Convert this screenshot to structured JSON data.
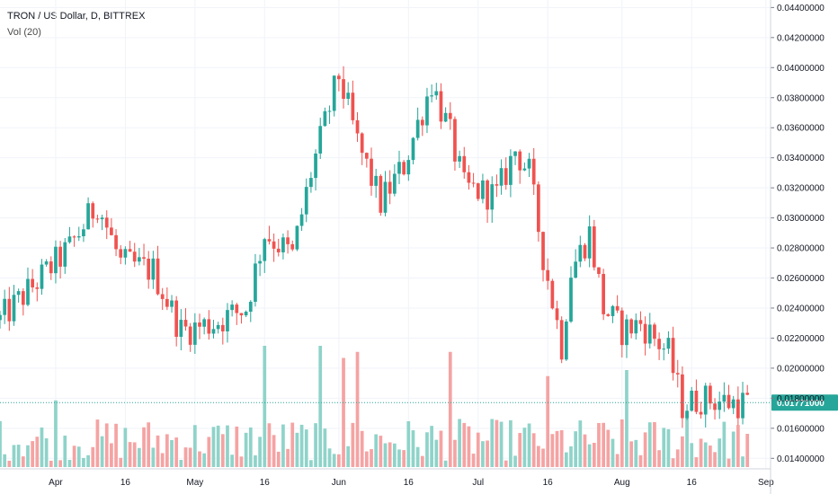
{
  "header": {
    "title": "TRON / US Dollar, D, BITTREX",
    "indicator": "Vol (20)"
  },
  "price_axis": {
    "ticks": [
      "0.04400000",
      "0.04200000",
      "0.04000000",
      "0.03800000",
      "0.03600000",
      "0.03400000",
      "0.03200000",
      "0.03000000",
      "0.02800000",
      "0.02600000",
      "0.02400000",
      "0.02200000",
      "0.02000000",
      "0.01800000",
      "0.01600000",
      "0.01400000"
    ],
    "last_price_label": "0.01771000"
  },
  "time_axis": {
    "ticks": [
      "Apr",
      "16",
      "May",
      "16",
      "Jun",
      "16",
      "Jul",
      "16",
      "Aug",
      "16",
      "Sep"
    ]
  },
  "colors": {
    "up": "#26a69a",
    "down": "#ef5350",
    "up_volume": "#8fd3c9",
    "down_volume": "#f5a3a3",
    "grid": "#f0f3fa",
    "axis_text": "#131722",
    "last_price_badge": "#26a69a"
  },
  "chart_data": {
    "type": "candlestick",
    "title": "TRON / US Dollar, D, BITTREX",
    "ylim": [
      0.0133,
      0.0445
    ],
    "x_range": [
      "2018-03-20",
      "2018-09-02"
    ],
    "grid": true,
    "last_price": 0.01771,
    "series_segments": [
      {
        "start": "2018-03-20",
        "close": 0.0232
      },
      {
        "start": "2018-04-04",
        "close": 0.028
      },
      {
        "start": "2018-04-10",
        "close": 0.031
      },
      {
        "start": "2018-04-15",
        "close": 0.027
      },
      {
        "start": "2018-04-22",
        "close": 0.0265
      },
      {
        "start": "2018-04-28",
        "close": 0.0225
      },
      {
        "start": "2018-05-05",
        "close": 0.023
      },
      {
        "start": "2018-05-12",
        "close": 0.024
      },
      {
        "start": "2018-05-16",
        "close": 0.029
      },
      {
        "start": "2018-05-22",
        "close": 0.0275
      },
      {
        "start": "2018-05-26",
        "close": 0.033
      },
      {
        "start": "2018-06-01",
        "close": 0.0395
      },
      {
        "start": "2018-06-05",
        "close": 0.035
      },
      {
        "start": "2018-06-10",
        "close": 0.031
      },
      {
        "start": "2018-06-15",
        "close": 0.0335
      },
      {
        "start": "2018-06-21",
        "close": 0.039
      },
      {
        "start": "2018-06-25",
        "close": 0.0355
      },
      {
        "start": "2018-06-28",
        "close": 0.032
      },
      {
        "start": "2018-07-05",
        "close": 0.0315
      },
      {
        "start": "2018-07-09",
        "close": 0.0345
      },
      {
        "start": "2018-07-12",
        "close": 0.033
      },
      {
        "start": "2018-07-15",
        "close": 0.0275
      },
      {
        "start": "2018-07-19",
        "close": 0.0215
      },
      {
        "start": "2018-07-21",
        "close": 0.0265
      },
      {
        "start": "2018-07-25",
        "close": 0.029
      },
      {
        "start": "2018-07-28",
        "close": 0.024
      },
      {
        "start": "2018-08-01",
        "close": 0.0225
      },
      {
        "start": "2018-08-05",
        "close": 0.023
      },
      {
        "start": "2018-08-08",
        "close": 0.022
      },
      {
        "start": "2018-08-11",
        "close": 0.021
      },
      {
        "start": "2018-08-14",
        "close": 0.0175
      },
      {
        "start": "2018-08-18",
        "close": 0.018
      },
      {
        "start": "2018-08-25",
        "close": 0.0177
      }
    ],
    "volume": {
      "name": "Vol (20)",
      "spikes": [
        {
          "date": "2018-04-01",
          "level": 0.55
        },
        {
          "date": "2018-05-16",
          "level": 1.0
        },
        {
          "date": "2018-05-28",
          "level": 1.0
        },
        {
          "date": "2018-06-02",
          "level": 0.9
        },
        {
          "date": "2018-06-05",
          "level": 0.95
        },
        {
          "date": "2018-06-25",
          "level": 0.95
        },
        {
          "date": "2018-07-16",
          "level": 0.75
        },
        {
          "date": "2018-08-02",
          "level": 0.8
        },
        {
          "date": "2018-08-15",
          "level": 0.45
        }
      ]
    }
  }
}
